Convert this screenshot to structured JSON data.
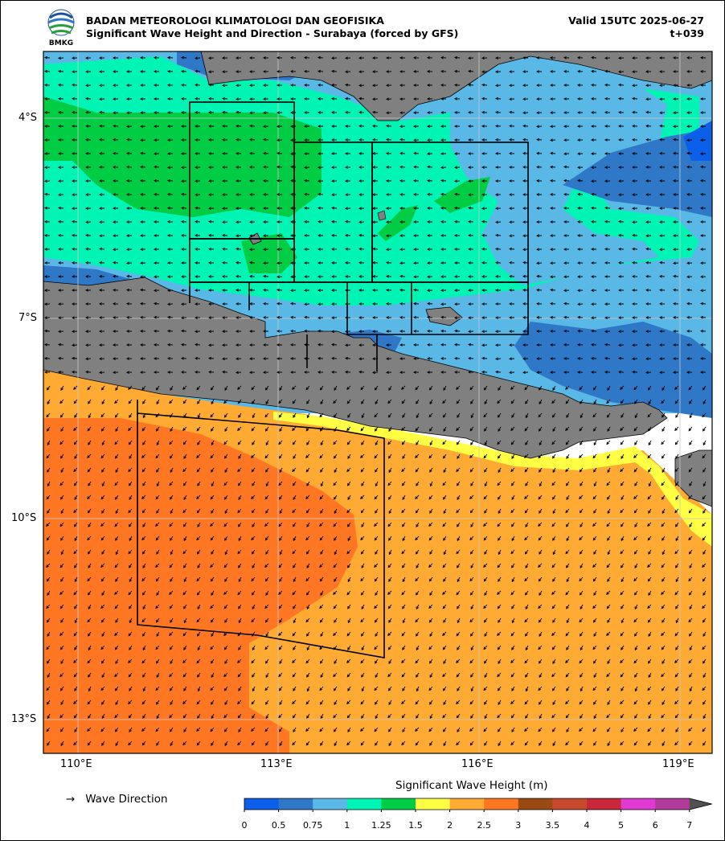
{
  "header": {
    "agency": "BADAN METEOROLOGI KLIMATOLOGI DAN GEOFISIKA",
    "product": "Significant Wave Height and Direction - Surabaya (forced by GFS)",
    "valid": "Valid 15UTC 2025-06-27",
    "lead": "t+039",
    "logo_text": "BMKG"
  },
  "map": {
    "lat_labels": [
      "4°S",
      "7°S",
      "10°S",
      "13°S"
    ],
    "lon_labels": [
      "110°E",
      "113°E",
      "116°E",
      "119°E"
    ],
    "land_color": "#808080",
    "grid_color": "#c8c8c8"
  },
  "legend": {
    "arrow_symbol": "→",
    "wave_direction_label": "Wave Direction"
  },
  "colorbar": {
    "title": "Significant Wave Height (m)",
    "ticks": [
      "0",
      "0.5",
      "0.75",
      "1",
      "1.25",
      "1.5",
      "2",
      "2.5",
      "3",
      "3.5",
      "4",
      "5",
      "6",
      "7"
    ],
    "colors": [
      "#0b5fe8",
      "#2f78c8",
      "#5ab8e6",
      "#00f5b5",
      "#00cc44",
      "#ffff44",
      "#ffaa33",
      "#ff7722",
      "#9c4a14",
      "#c84a2e",
      "#c8283a",
      "#e13ad2",
      "#b13a9a"
    ],
    "extend_color": "#505050"
  }
}
